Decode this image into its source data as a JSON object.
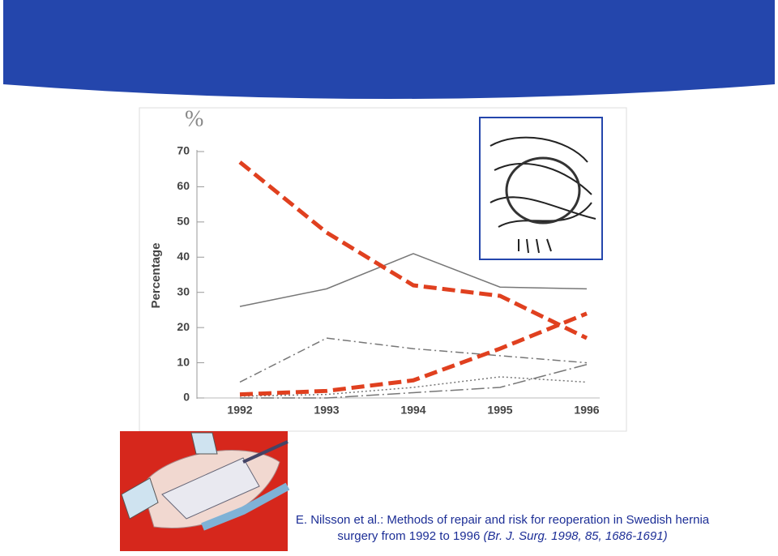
{
  "chart_data": {
    "type": "line",
    "unit_label": "%",
    "y_label": "Percentage",
    "categories": [
      "1992",
      "1993",
      "1994",
      "1995",
      "1996"
    ],
    "series": [
      {
        "color": "#777777",
        "dash": "solid",
        "width": 1.5,
        "values": [
          26,
          31,
          41,
          31.5,
          31
        ]
      },
      {
        "color": "#777777",
        "dash": "dashdot",
        "width": 1.5,
        "values": [
          4.5,
          17,
          14,
          12,
          10
        ]
      },
      {
        "color": "#777777",
        "dash": "dotted",
        "width": 1.5,
        "values": [
          0.5,
          1,
          3,
          6,
          4.5
        ]
      },
      {
        "color": "#777777",
        "dash": "longdashdot",
        "width": 1.5,
        "values": [
          0,
          0,
          1.5,
          3,
          9.5
        ]
      },
      {
        "color": "#e0401f",
        "dash": "dashed",
        "width": 5,
        "values": [
          67,
          47,
          32,
          29,
          17
        ]
      },
      {
        "color": "#e0401f",
        "dash": "dashed",
        "width": 5,
        "values": [
          1,
          2,
          5,
          14,
          24
        ]
      }
    ],
    "ylim": [
      0,
      70
    ],
    "yticks": [
      0,
      10,
      20,
      30,
      40,
      50,
      60,
      70
    ],
    "grid": false
  },
  "caption": {
    "line1": "E. Nilsson et al.: Methods of repair and risk for reoperation in Swedish hernia",
    "line2": "surgery from 1992 to 1996",
    "source": "(Br. J. Surg. 1998, 85, 1686-1691)"
  }
}
